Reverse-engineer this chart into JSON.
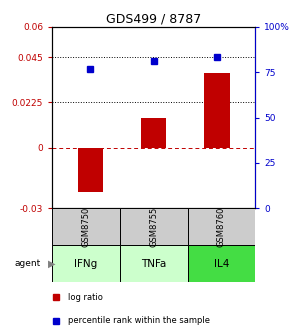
{
  "title": "GDS499 / 8787",
  "categories": [
    "IFNg",
    "TNFa",
    "IL4"
  ],
  "gsm_labels": [
    "GSM8750",
    "GSM8755",
    "GSM8760"
  ],
  "log_ratios": [
    -0.022,
    0.015,
    0.037
  ],
  "percentile_ranks": [
    0.039,
    0.043,
    0.045
  ],
  "bar_color": "#c00000",
  "dot_color": "#0000cc",
  "gsm_bg_color": "#cccccc",
  "agent_bg_colors": [
    "#ccffcc",
    "#ccffcc",
    "#44dd44"
  ],
  "ylim_left": [
    -0.03,
    0.06
  ],
  "ylim_right": [
    0,
    100
  ],
  "yticks_left": [
    -0.03,
    0,
    0.0225,
    0.045,
    0.06
  ],
  "ytick_labels_left": [
    "-0.03",
    "0",
    "0.0225",
    "0.045",
    "0.06"
  ],
  "yticks_right": [
    0,
    25,
    50,
    75,
    100
  ],
  "ytick_labels_right": [
    "0",
    "25",
    "50",
    "75",
    "100%"
  ],
  "dotted_lines": [
    0.0225,
    0.045
  ],
  "zero_dashed": 0.0,
  "legend_items": [
    "log ratio",
    "percentile rank within the sample"
  ],
  "bar_width": 0.4,
  "dot_size": 5
}
